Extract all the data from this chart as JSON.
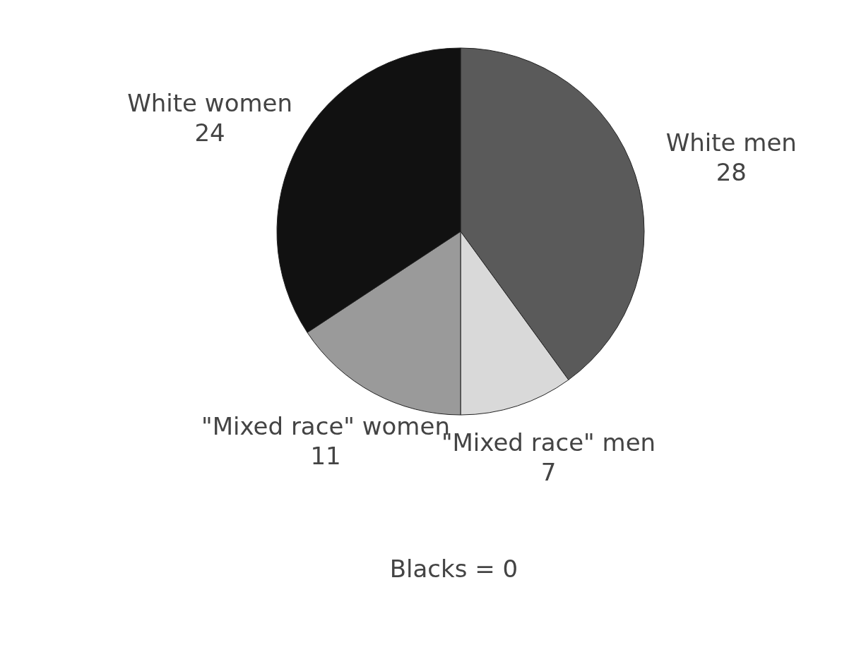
{
  "chart_data": {
    "type": "pie",
    "categories": [
      "White men",
      "\"Mixed race\" men",
      "\"Mixed race\" women",
      "White women"
    ],
    "values": [
      28,
      7,
      11,
      24
    ],
    "colors": [
      "#5a5a5a",
      "#d9d9d9",
      "#9a9a9a",
      "#111111"
    ],
    "data_labels": true,
    "annotations": [
      "Blacks = 0"
    ]
  }
}
